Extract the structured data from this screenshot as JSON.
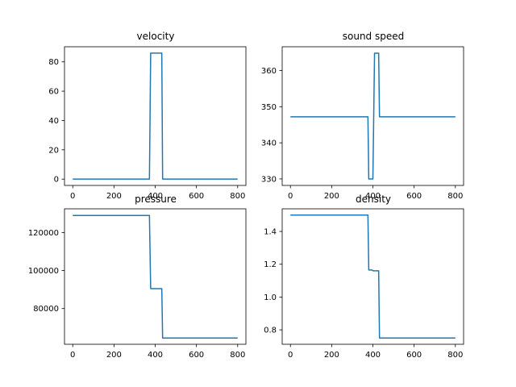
{
  "chart_data": [
    {
      "type": "line",
      "title": "velocity",
      "xlim": [
        -40,
        840
      ],
      "ylim": [
        -4.3,
        90.3
      ],
      "xticks": [
        0,
        200,
        400,
        600,
        800
      ],
      "yticks": [
        0,
        20,
        40,
        60,
        80
      ],
      "series": [
        {
          "color": "#1f77b4",
          "x": [
            0,
            372,
            378,
            432,
            436,
            800
          ],
          "y": [
            0,
            0,
            86,
            86,
            0,
            0
          ]
        }
      ]
    },
    {
      "type": "line",
      "title": "sound speed",
      "xlim": [
        -40,
        840
      ],
      "ylim": [
        328.2,
        366.6
      ],
      "xticks": [
        0,
        200,
        400,
        600,
        800
      ],
      "yticks": [
        330,
        340,
        350,
        360
      ],
      "series": [
        {
          "color": "#1f77b4",
          "x": [
            0,
            376,
            380,
            396,
            400,
            404,
            408,
            428,
            432,
            800
          ],
          "y": [
            347.2,
            347.2,
            330,
            330,
            330,
            347.2,
            364.8,
            364.8,
            347.2,
            347.2
          ]
        }
      ]
    },
    {
      "type": "line",
      "title": "pressure",
      "xlim": [
        -40,
        840
      ],
      "ylim": [
        61200,
        132500
      ],
      "xticks": [
        0,
        200,
        400,
        600,
        800
      ],
      "yticks": [
        80000,
        100000,
        120000
      ],
      "series": [
        {
          "color": "#1f77b4",
          "x": [
            0,
            372,
            378,
            432,
            436,
            800
          ],
          "y": [
            129000,
            129000,
            90500,
            90500,
            64500,
            64500
          ]
        }
      ]
    },
    {
      "type": "line",
      "title": "density",
      "xlim": [
        -40,
        840
      ],
      "ylim": [
        0.712,
        1.538
      ],
      "xticks": [
        0,
        200,
        400,
        600,
        800
      ],
      "yticks": [
        0.8,
        1.0,
        1.2,
        1.4
      ],
      "ytick_labels": [
        "0.8",
        "1.0",
        "1.2",
        "1.4"
      ],
      "series": [
        {
          "color": "#1f77b4",
          "x": [
            0,
            376,
            380,
            396,
            400,
            428,
            432,
            800
          ],
          "y": [
            1.5,
            1.5,
            1.165,
            1.165,
            1.16,
            1.16,
            0.75,
            0.75
          ]
        }
      ]
    }
  ]
}
